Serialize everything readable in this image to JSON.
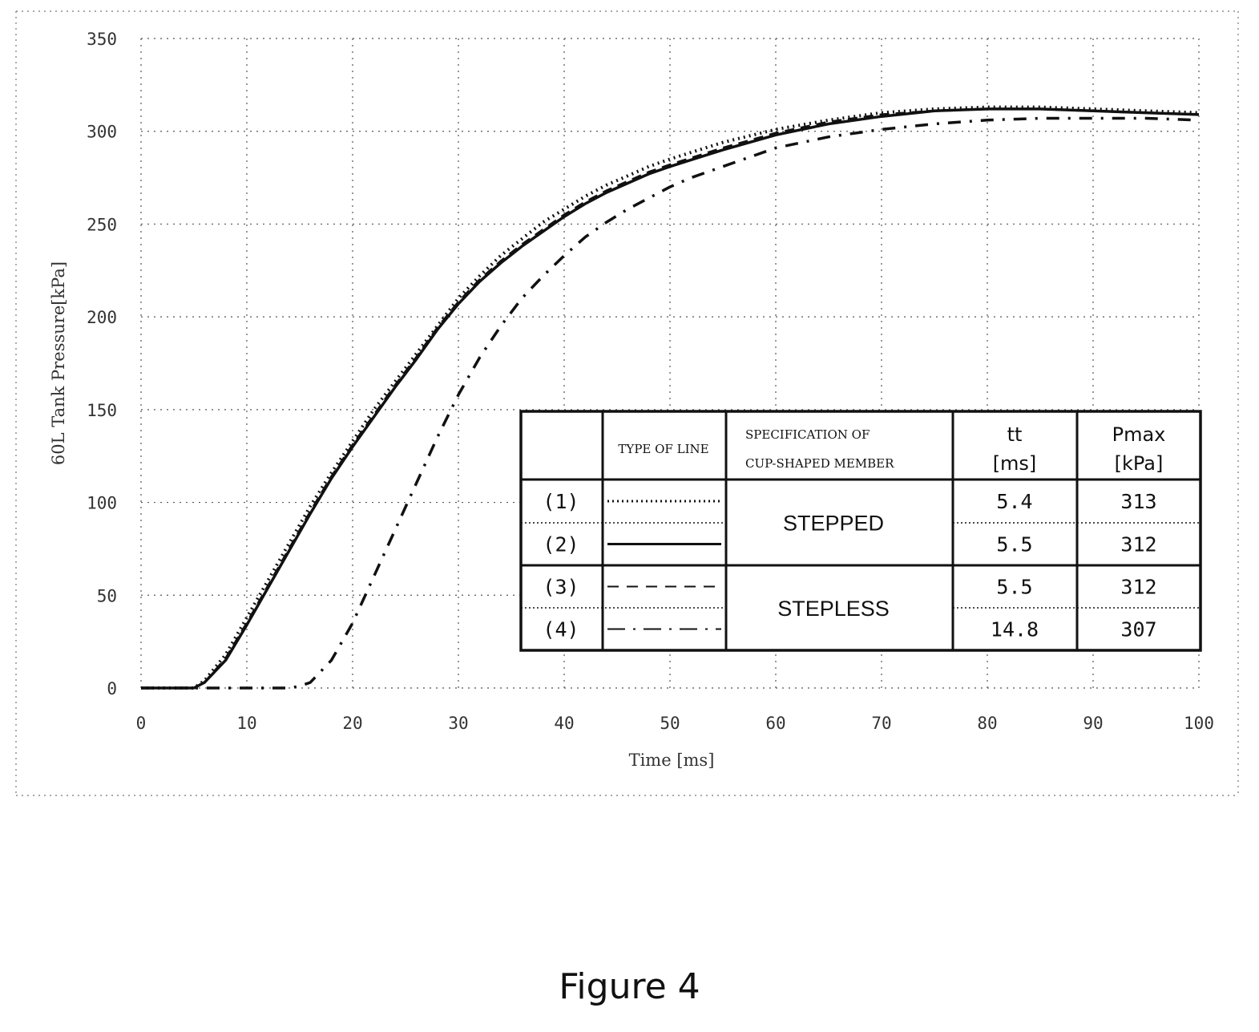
{
  "caption": "Figure 4",
  "chart_data": {
    "type": "line",
    "xlabel": "Time [ms]",
    "ylabel": "60L Tank Pressure[kPa]",
    "xlim": [
      0,
      100
    ],
    "ylim": [
      0,
      350
    ],
    "xticks": [
      0,
      10,
      20,
      30,
      40,
      50,
      60,
      70,
      80,
      90,
      100
    ],
    "yticks": [
      0,
      50,
      100,
      150,
      200,
      250,
      300,
      350
    ],
    "grid": "dotted",
    "series": [
      {
        "name": "(1)",
        "line_style": "dotted",
        "x": [
          0,
          5,
          6,
          8,
          10,
          12,
          14,
          16,
          18,
          20,
          22,
          24,
          26,
          28,
          30,
          32,
          34,
          36,
          38,
          40,
          42,
          44,
          46,
          48,
          50,
          55,
          60,
          65,
          70,
          75,
          80,
          85,
          90,
          95,
          100
        ],
        "y": [
          0,
          0,
          4,
          18,
          38,
          58,
          78,
          98,
          116,
          133,
          150,
          165,
          180,
          195,
          210,
          222,
          233,
          242,
          251,
          258,
          265,
          271,
          276,
          281,
          285,
          294,
          301,
          306,
          310,
          312,
          313,
          313,
          312,
          311,
          310
        ]
      },
      {
        "name": "(2)",
        "line_style": "solid",
        "x": [
          0,
          5,
          6,
          8,
          10,
          12,
          14,
          16,
          18,
          20,
          22,
          24,
          26,
          28,
          30,
          32,
          34,
          36,
          38,
          40,
          42,
          44,
          46,
          48,
          50,
          55,
          60,
          65,
          70,
          75,
          80,
          85,
          90,
          95,
          100
        ],
        "y": [
          0,
          0,
          3,
          15,
          34,
          54,
          74,
          94,
          113,
          130,
          146,
          162,
          177,
          193,
          207,
          219,
          229,
          238,
          246,
          254,
          261,
          267,
          272,
          277,
          281,
          290,
          298,
          304,
          308,
          311,
          312,
          312,
          311,
          310,
          309
        ]
      },
      {
        "name": "(3)",
        "line_style": "dashed",
        "x": [
          0,
          5,
          6,
          8,
          10,
          12,
          14,
          16,
          18,
          20,
          22,
          24,
          26,
          28,
          30,
          32,
          34,
          36,
          38,
          40,
          42,
          44,
          46,
          48,
          50,
          55,
          60,
          65,
          70,
          75,
          80,
          85,
          90,
          95,
          100
        ],
        "y": [
          0,
          0,
          3,
          16,
          35,
          55,
          75,
          95,
          114,
          131,
          147,
          163,
          178,
          194,
          208,
          220,
          230,
          239,
          247,
          255,
          262,
          268,
          273,
          278,
          282,
          291,
          299,
          305,
          309,
          311,
          312,
          312,
          311,
          310,
          309
        ]
      },
      {
        "name": "(4)",
        "line_style": "dash-dot",
        "x": [
          0,
          14,
          15,
          16,
          18,
          20,
          22,
          24,
          26,
          28,
          30,
          32,
          34,
          36,
          38,
          40,
          42,
          44,
          46,
          48,
          50,
          52,
          55,
          60,
          65,
          70,
          75,
          80,
          85,
          90,
          95,
          100
        ],
        "y": [
          0,
          0,
          1,
          3,
          15,
          35,
          60,
          85,
          110,
          135,
          158,
          178,
          195,
          210,
          222,
          233,
          243,
          251,
          258,
          264,
          270,
          275,
          281,
          291,
          297,
          301,
          304,
          306,
          307,
          307,
          307,
          306
        ]
      }
    ]
  },
  "legend_table": {
    "headers": {
      "type_of_line": "TYPE OF LINE",
      "spec_line1": "SPECIFICATION OF",
      "spec_line2": "CUP-SHAPED MEMBER",
      "t_line1": "tt",
      "t_line2": "[ms]",
      "p_line1": "Pmax",
      "p_line2": "[kPa]"
    },
    "rows": [
      {
        "label": "(1)",
        "line_style": "dotted",
        "tt": "5.4",
        "pmax": "313"
      },
      {
        "label": "(2)",
        "line_style": "solid",
        "tt": "5.5",
        "pmax": "312"
      },
      {
        "label": "(3)",
        "line_style": "dashed",
        "tt": "5.5",
        "pmax": "312"
      },
      {
        "label": "(4)",
        "line_style": "dash-dot",
        "tt": "14.8",
        "pmax": "307"
      }
    ],
    "specs": [
      {
        "text": "STEPPED",
        "rows": [
          0,
          1
        ]
      },
      {
        "text": "STEPLESS",
        "rows": [
          2,
          3
        ]
      }
    ]
  }
}
